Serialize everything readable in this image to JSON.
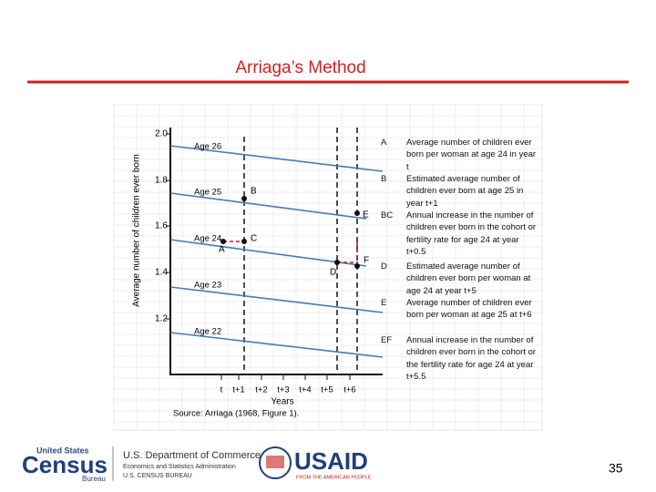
{
  "title": "Arriaga’s Method",
  "figure": {
    "y_axis_label": "Average number of children ever born",
    "yticks": [
      "2.0",
      "1.8",
      "1.6",
      "1.4",
      "1.2"
    ],
    "xticks": [
      "t",
      "t+1",
      "t+2",
      "t+3",
      "t+4",
      "t+5",
      "t+6"
    ],
    "x_axis_label": "Years",
    "ages": [
      "Age 26",
      "Age 25",
      "Age 24",
      "Age 23",
      "Age 22"
    ],
    "points": [
      "A",
      "B",
      "C",
      "D",
      "E",
      "F"
    ],
    "source": "Source: Arriaga (1968, Figure 1)."
  },
  "legend": [
    {
      "key": "A",
      "text": "Average number of children ever born per woman at age 24 in year t"
    },
    {
      "key": "B",
      "text": "Estimated average number of children ever born at age 25 in year t+1"
    },
    {
      "key": "BC",
      "text": "Annual increase in the number of children ever born in the cohort or fertility rate for age 24 at year t+0.5"
    },
    {
      "key": "D",
      "text": "Estimated average number of children ever born per woman at age 24 at year t+5"
    },
    {
      "key": "E",
      "text": "Average number of children ever born per woman at age 25 at t+6"
    },
    {
      "key": "EF",
      "text": "Annual increase in the number of children ever born in the cohort or the fertility rate for age 24 at year t+5.5"
    }
  ],
  "footer": {
    "census_top": "United States",
    "census_main": "Census",
    "census_sub": "Bureau",
    "commerce": "U.S. Department of Commerce",
    "esa": "Economics and Statistics Administration",
    "bureau": "U.S. CENSUS BUREAU",
    "usaid": "USAID",
    "usaid_sub": "FROM THE AMERICAN PEOPLE",
    "page": "35"
  }
}
